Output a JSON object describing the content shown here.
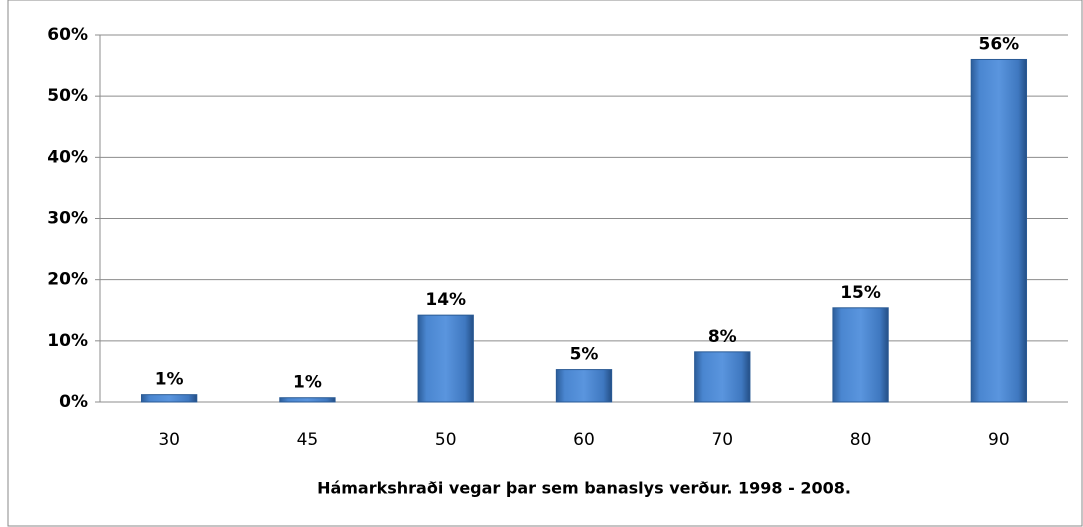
{
  "chart_data": {
    "type": "bar",
    "x_label": "Hámarkshraði vegar þar sem banaslys verður. 1998 - 2008.",
    "categories": [
      "30",
      "45",
      "50",
      "60",
      "70",
      "80",
      "90"
    ],
    "values": [
      1.2,
      0.7,
      14.2,
      5.3,
      8.2,
      15.4,
      56
    ],
    "value_labels": [
      "1%",
      "1%",
      "14%",
      "5%",
      "8%",
      "15%",
      "56%"
    ],
    "color": "#4a7ebb",
    "ylim": [
      0,
      60
    ],
    "yticks": [
      {
        "value": 0,
        "label": "0%"
      },
      {
        "value": 10,
        "label": "10%"
      },
      {
        "value": 20,
        "label": "20%"
      },
      {
        "value": 30,
        "label": "30%"
      },
      {
        "value": 40,
        "label": "40%"
      },
      {
        "value": 50,
        "label": "50%"
      },
      {
        "value": 60,
        "label": "60%"
      }
    ],
    "grid": true
  }
}
